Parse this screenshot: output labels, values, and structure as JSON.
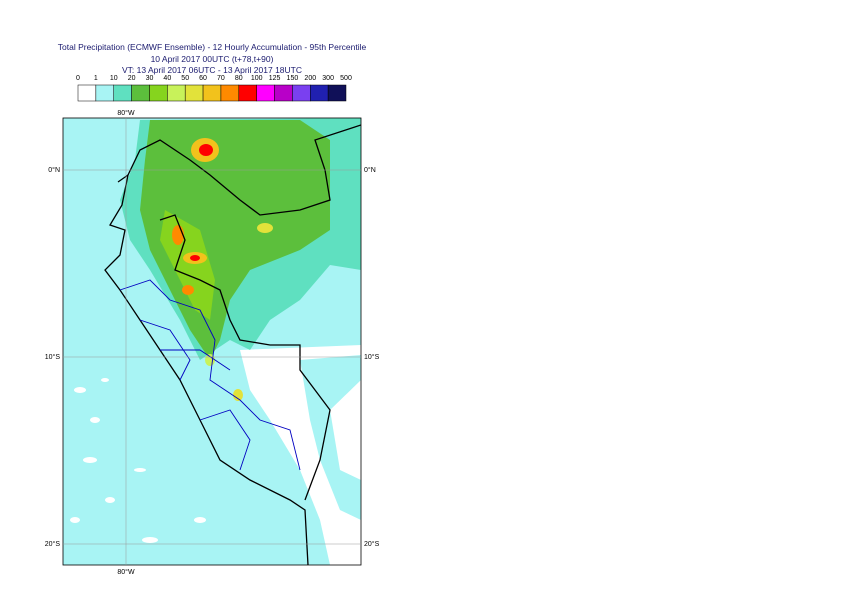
{
  "title": [
    "Total Precipitation (ECMWF Ensemble) - 12 Hourly Accumulation - 95th Percentile",
    "10 April 2017 00UTC (t+78,t+90)",
    "VT: 13 April 2017 06UTC - 13 April 2017 18UTC"
  ],
  "legend": {
    "labels": [
      0,
      1,
      10,
      20,
      30,
      40,
      50,
      60,
      70,
      80,
      100,
      125,
      150,
      200,
      300,
      500
    ],
    "colors": [
      "#ffffff",
      "#a8f4f4",
      "#5fe0c0",
      "#5cbf3c",
      "#86d41e",
      "#c8f25a",
      "#e2e23a",
      "#f2c21c",
      "#ff8a00",
      "#ff0000",
      "#ff00ff",
      "#b800c8",
      "#7a40f0",
      "#2020b0",
      "#101058"
    ]
  },
  "map": {
    "lon_labels": [
      "80°W"
    ],
    "lat_labels": [
      "0°N",
      "10°S",
      "20°S"
    ]
  }
}
